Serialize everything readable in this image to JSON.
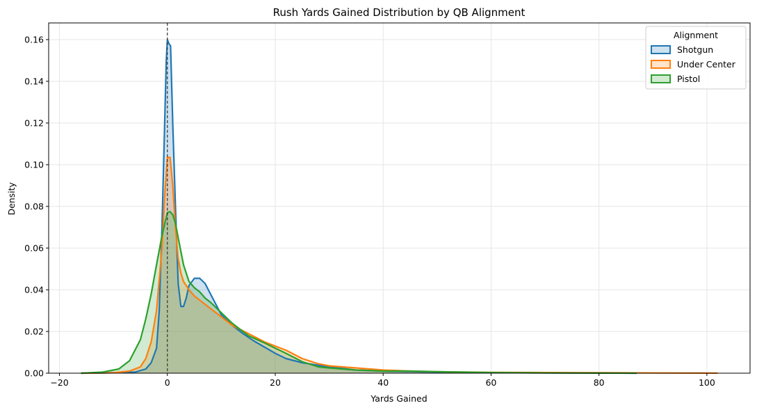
{
  "chart_data": {
    "type": "area",
    "title": "Rush Yards Gained Distribution by QB Alignment",
    "xlabel": "Yards Gained",
    "ylabel": "Density",
    "xlim": [
      -22,
      108
    ],
    "ylim": [
      0,
      0.168
    ],
    "xticks": [
      -20,
      0,
      20,
      40,
      60,
      80,
      100
    ],
    "xtick_labels": [
      "−20",
      "0",
      "20",
      "40",
      "60",
      "80",
      "100"
    ],
    "yticks": [
      0,
      0.02,
      0.04,
      0.06,
      0.08,
      0.1,
      0.12,
      0.14,
      0.16
    ],
    "ytick_labels": [
      "0.00",
      "0.02",
      "0.04",
      "0.06",
      "0.08",
      "0.10",
      "0.12",
      "0.14",
      "0.16"
    ],
    "grid": true,
    "reference_line": {
      "x": 0,
      "style": "dashed"
    },
    "legend": {
      "title": "Alignment",
      "position": "top-right"
    },
    "series": [
      {
        "name": "Shotgun",
        "color": "#1f77b4",
        "x": [
          -16,
          -10,
          -6,
          -4,
          -3,
          -2,
          -1.5,
          -1,
          -0.5,
          -0.2,
          0,
          0.3,
          0.6,
          1,
          1.5,
          2,
          2.5,
          3,
          3.5,
          4,
          5,
          6,
          7,
          8,
          9,
          10,
          12,
          14,
          16,
          18,
          20,
          22,
          25,
          30,
          35,
          40,
          45,
          50,
          60,
          70,
          80,
          87
        ],
        "y": [
          0,
          0.0002,
          0.0005,
          0.002,
          0.005,
          0.012,
          0.03,
          0.07,
          0.12,
          0.15,
          0.16,
          0.158,
          0.157,
          0.12,
          0.08,
          0.043,
          0.032,
          0.032,
          0.036,
          0.042,
          0.0455,
          0.0455,
          0.043,
          0.038,
          0.033,
          0.028,
          0.023,
          0.019,
          0.0155,
          0.0125,
          0.0095,
          0.007,
          0.005,
          0.003,
          0.0015,
          0.001,
          0.0008,
          0.0005,
          0.0003,
          0.0002,
          0.0001,
          0
        ]
      },
      {
        "name": "Under Center",
        "color": "#ff7f0e",
        "x": [
          -16,
          -10,
          -7,
          -5,
          -4,
          -3,
          -2,
          -1,
          -0.5,
          0,
          0.5,
          1,
          1.5,
          2,
          2.5,
          3,
          4,
          5,
          6,
          8,
          10,
          12,
          15,
          18,
          20,
          22,
          25,
          28,
          30,
          35,
          40,
          45,
          50,
          60,
          70,
          80,
          90,
          100,
          102
        ],
        "y": [
          0,
          0.0002,
          0.001,
          0.003,
          0.007,
          0.015,
          0.03,
          0.06,
          0.085,
          0.1035,
          0.1035,
          0.09,
          0.07,
          0.055,
          0.048,
          0.044,
          0.04,
          0.037,
          0.035,
          0.031,
          0.027,
          0.023,
          0.019,
          0.015,
          0.013,
          0.011,
          0.007,
          0.0045,
          0.0035,
          0.0025,
          0.0015,
          0.001,
          0.0007,
          0.0004,
          0.0003,
          0.0002,
          0.0001,
          5e-05,
          0
        ]
      },
      {
        "name": "Pistol",
        "color": "#2ca02c",
        "x": [
          -16,
          -12,
          -9,
          -7,
          -5,
          -4,
          -3,
          -2,
          -1,
          0,
          0.5,
          1,
          1.5,
          2,
          3,
          4,
          5,
          6,
          7,
          8,
          10,
          12,
          15,
          18,
          20,
          22,
          25,
          28,
          30,
          35,
          40,
          45,
          50,
          60,
          70,
          80,
          87
        ],
        "y": [
          0,
          0.0005,
          0.002,
          0.006,
          0.016,
          0.026,
          0.038,
          0.052,
          0.066,
          0.077,
          0.0775,
          0.076,
          0.072,
          0.065,
          0.052,
          0.044,
          0.041,
          0.039,
          0.036,
          0.034,
          0.029,
          0.024,
          0.018,
          0.0145,
          0.012,
          0.0095,
          0.0055,
          0.003,
          0.0025,
          0.0015,
          0.001,
          0.001,
          0.0007,
          0.0003,
          0.0001,
          5e-05,
          0
        ]
      }
    ]
  }
}
